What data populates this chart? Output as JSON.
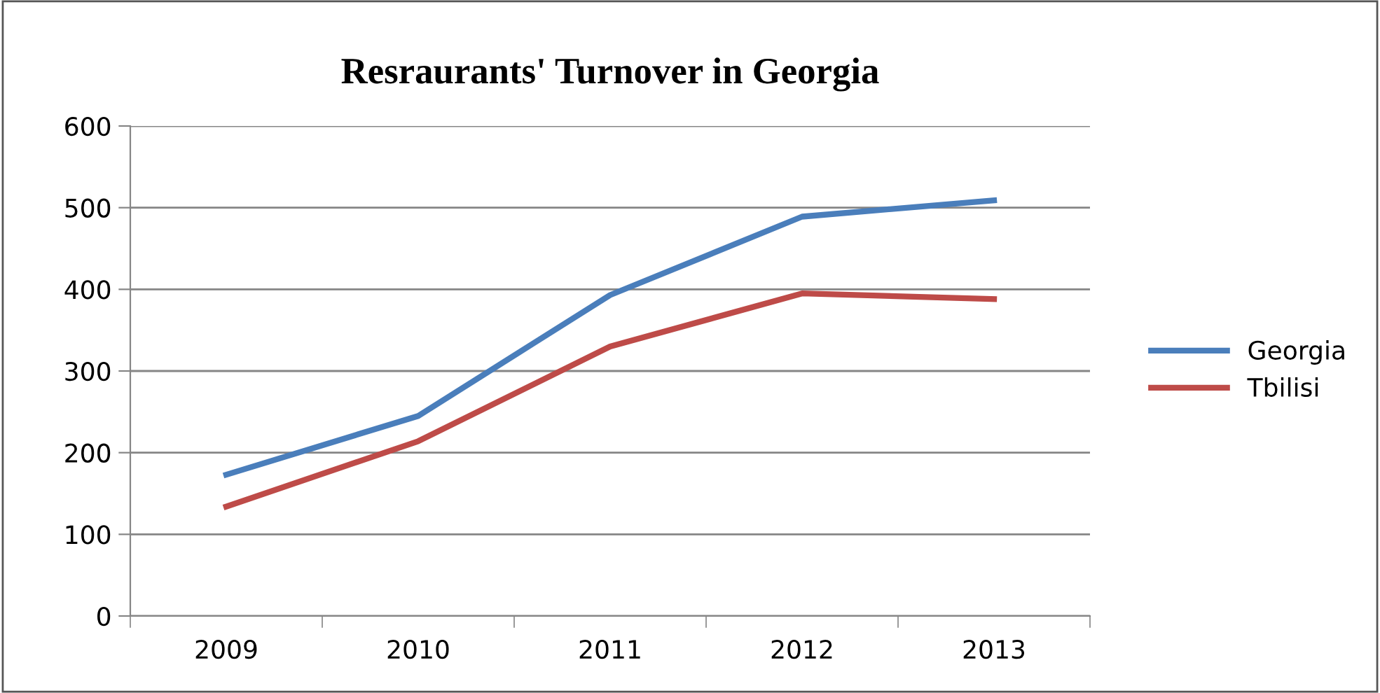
{
  "chart_data": {
    "type": "line",
    "title": "Resraurants' Turnover in Georgia",
    "categories": [
      "2009",
      "2010",
      "2011",
      "2012",
      "2013"
    ],
    "series": [
      {
        "name": "Georgia",
        "color": "#4a7ebb",
        "values": [
          173,
          245,
          393,
          489,
          509
        ]
      },
      {
        "name": "Tbilisi",
        "color": "#be4b48",
        "values": [
          134,
          214,
          330,
          395,
          388
        ]
      }
    ],
    "ylim": [
      0,
      600
    ],
    "yticks": [
      0,
      100,
      200,
      300,
      400,
      500,
      600
    ],
    "grid": "y",
    "legend": "right",
    "marker": "none",
    "line_style": "solid"
  }
}
